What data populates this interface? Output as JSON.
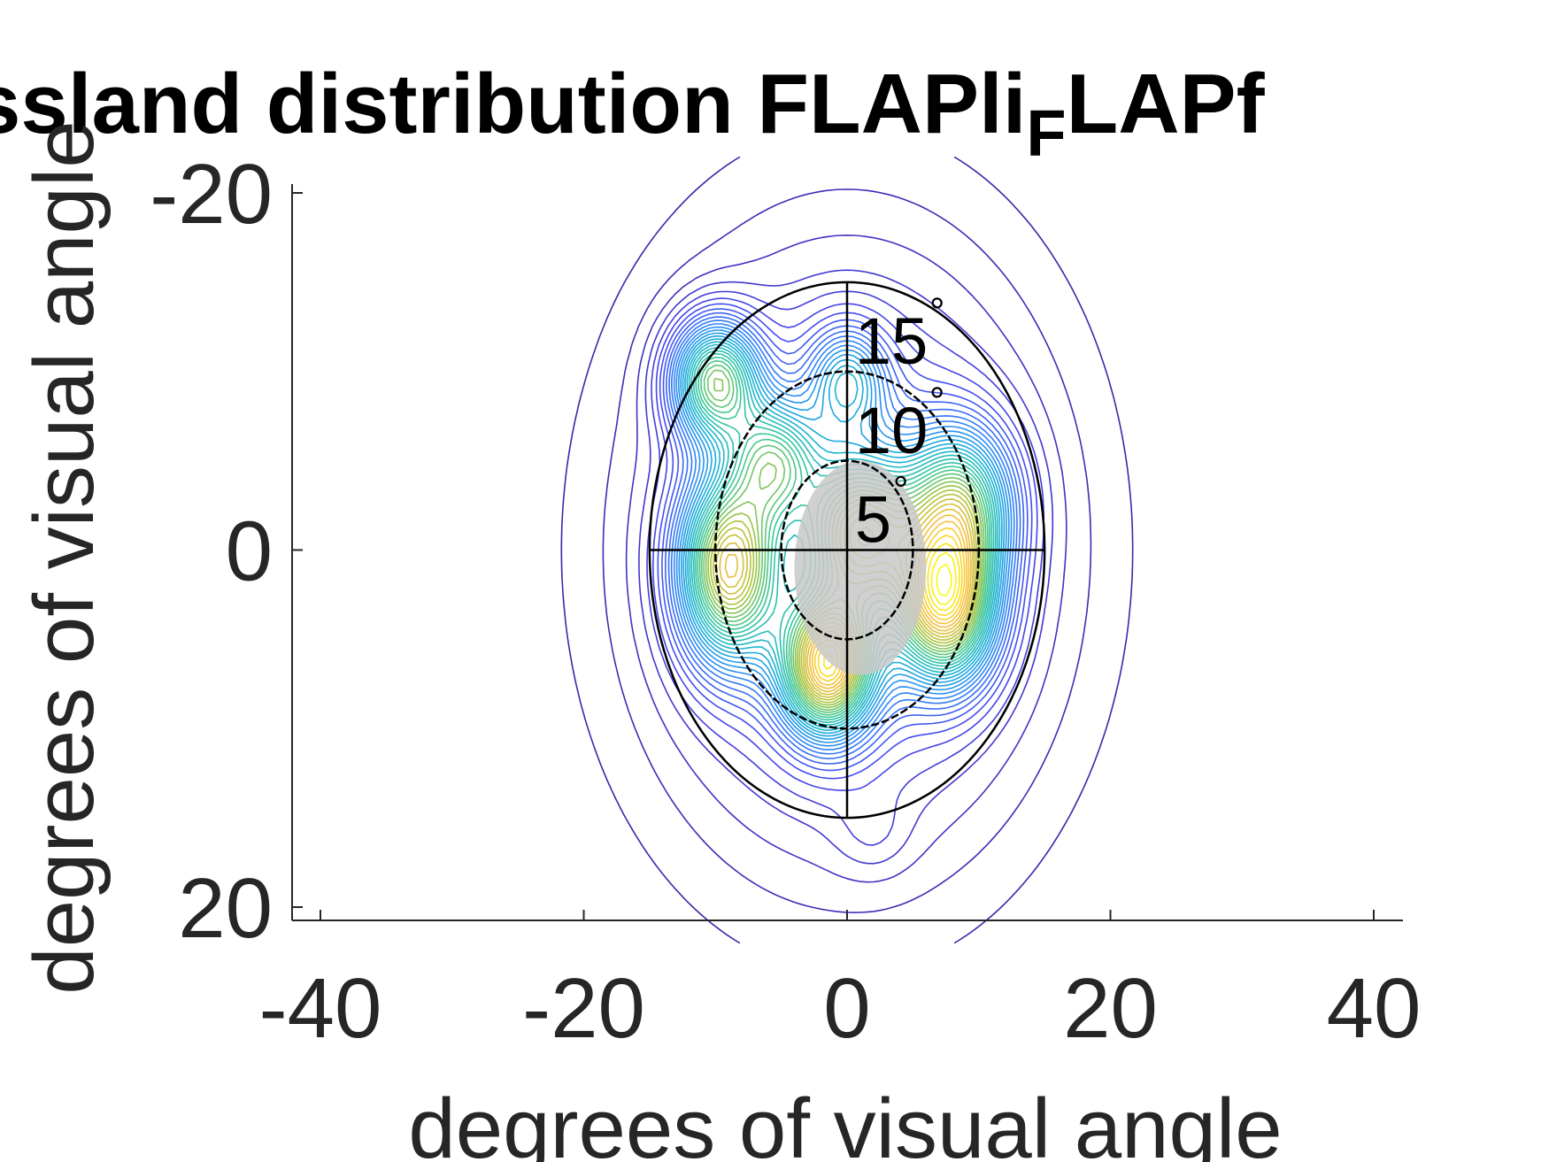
{
  "chart_data": {
    "type": "contour",
    "title_main": "ssland distribution FLAPli",
    "title_sub": "F",
    "title_tail": "LAPf",
    "xlabel": "degrees of visual angle",
    "ylabel": "degrees of visual angle",
    "xlim": [
      -40,
      40
    ],
    "ylim": [
      -20,
      20
    ],
    "y_reversed": true,
    "xticks": [
      -40,
      -20,
      0,
      20,
      40
    ],
    "xtick_labels": [
      "-40",
      "-20",
      "0",
      "20",
      "40"
    ],
    "yticks": [
      -20,
      0,
      20
    ],
    "ytick_labels": [
      "-20",
      "0",
      "20"
    ],
    "grid": false,
    "ring_radii": [
      5,
      10,
      15
    ],
    "ring_labels": [
      "5",
      "10",
      "15"
    ],
    "degree_symbol": "°",
    "blind_spot": {
      "cx": 1,
      "cy": 1,
      "rx": 5,
      "ry": 6,
      "color": "#c8c8c8"
    },
    "density_peaks": [
      {
        "x": -10,
        "y": -9.5,
        "amp": 0.8,
        "sx": 2.3,
        "sy": 2.3
      },
      {
        "x": -5.5,
        "y": -5,
        "amp": 0.55,
        "sx": 2.3,
        "sy": 2.3
      },
      {
        "x": -9,
        "y": 1,
        "amp": 0.95,
        "sx": 2.6,
        "sy": 3.5
      },
      {
        "x": -1.5,
        "y": 6.5,
        "amp": 1.05,
        "sx": 2.4,
        "sy": 2.6
      },
      {
        "x": 7.5,
        "y": 3,
        "amp": 1.0,
        "sx": 2.6,
        "sy": 3.0
      },
      {
        "x": 8.5,
        "y": -2.5,
        "amp": 0.7,
        "sx": 2.8,
        "sy": 3.0
      },
      {
        "x": 1,
        "y": -1,
        "amp": 0.75,
        "sx": 2.8,
        "sy": 3.0
      },
      {
        "x": 0,
        "y": -9.5,
        "amp": 0.4,
        "sx": 2.0,
        "sy": 2.0
      },
      {
        "x": 2,
        "y": 16,
        "amp": 0.06,
        "sx": 2.0,
        "sy": 1.6
      },
      {
        "x": 0,
        "y": 0,
        "amp": 0.38,
        "sx": 10.5,
        "sy": 11.5
      }
    ],
    "contour_levels": 40,
    "colormap": [
      "#3e26a8",
      "#4748f0",
      "#2e87f7",
      "#19b2d5",
      "#3bc896",
      "#a9c33a",
      "#f9bd3f",
      "#f9fb0e"
    ]
  }
}
